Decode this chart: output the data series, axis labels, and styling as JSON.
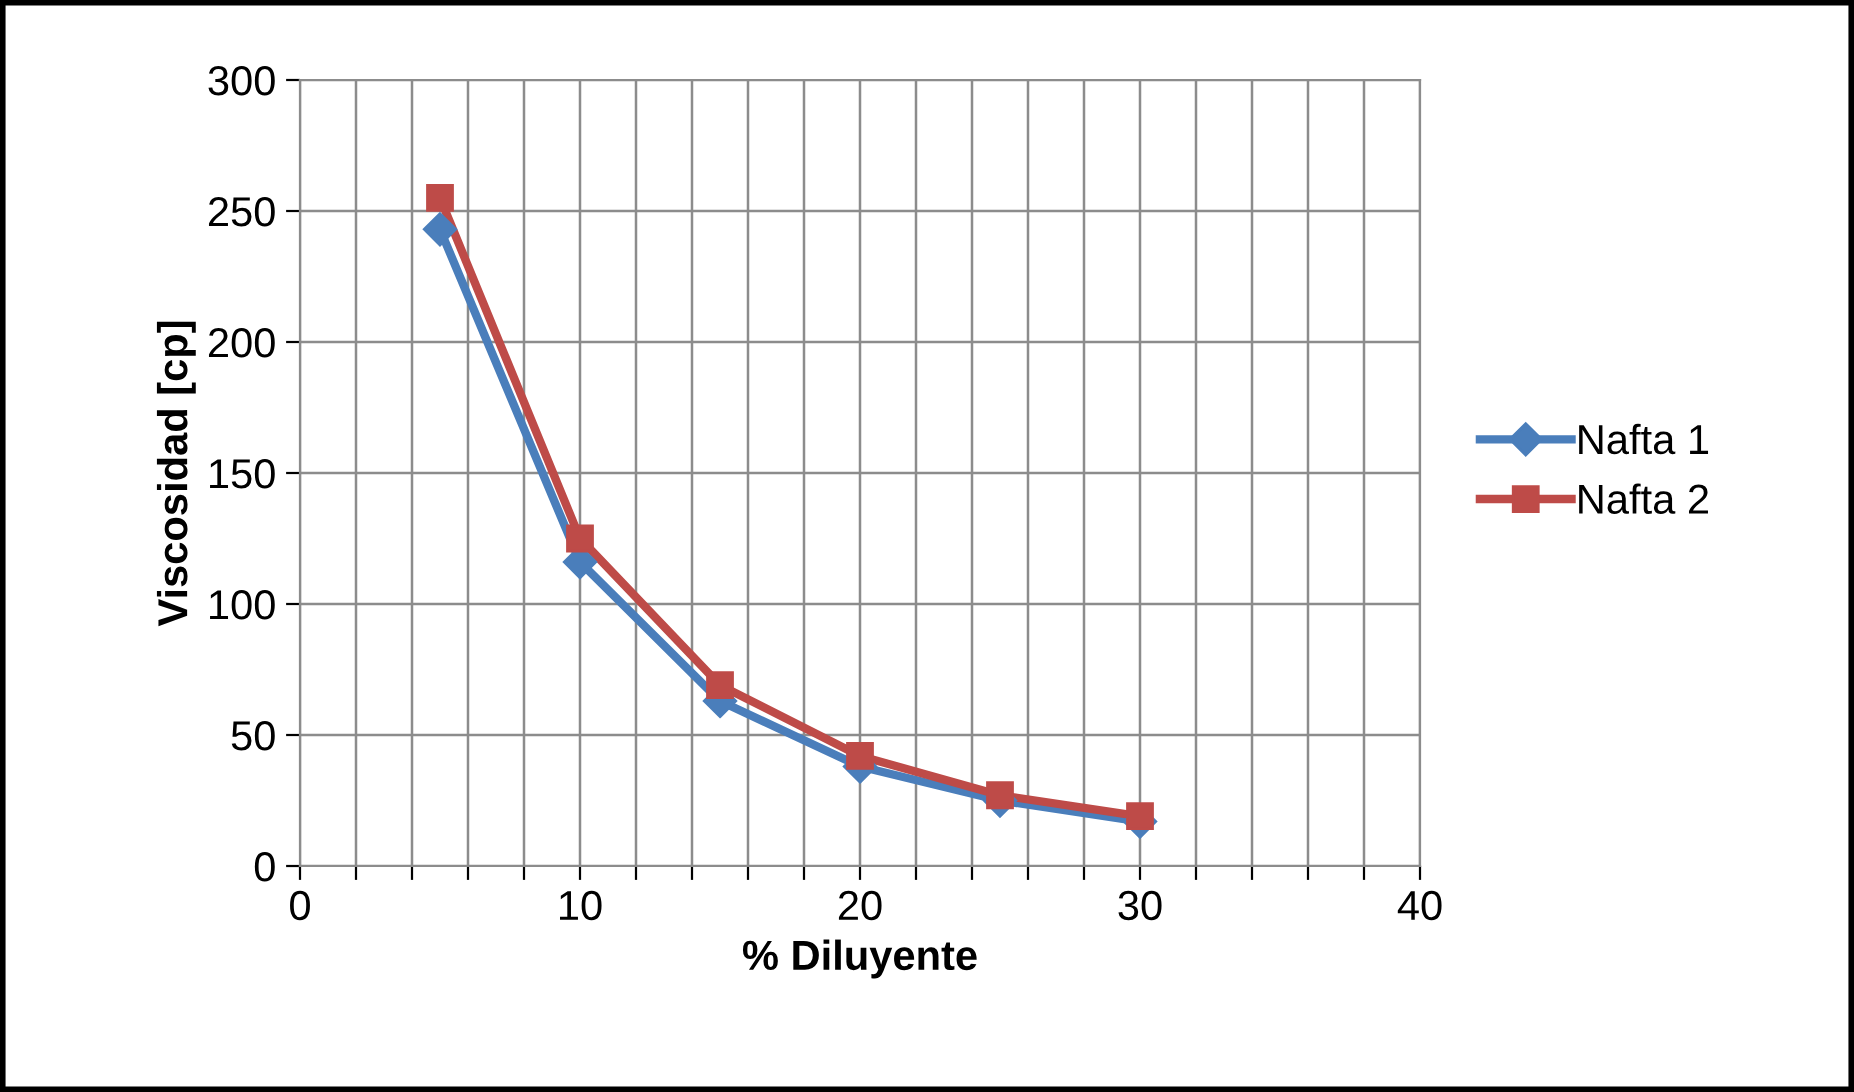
{
  "chart_data": {
    "type": "line",
    "xlabel": "% Diluyente",
    "ylabel": "Viscosidad [cp]",
    "x": [
      5,
      10,
      15,
      20,
      25,
      30
    ],
    "series": [
      {
        "name": "Nafta 1",
        "color": "#4a7ebb",
        "marker": "diamond",
        "values": [
          243,
          116,
          63,
          38,
          25,
          17
        ]
      },
      {
        "name": "Nafta 2",
        "color": "#be4b48",
        "marker": "square",
        "values": [
          255,
          125,
          69,
          42,
          27,
          19
        ]
      }
    ],
    "xlim": [
      0,
      40
    ],
    "ylim": [
      0,
      300
    ],
    "xticks": [
      0,
      {
        "value": 2,
        "label": null
      },
      {
        "value": 4,
        "label": null
      },
      {
        "value": 6,
        "label": null
      },
      {
        "value": 8,
        "label": null
      },
      10,
      {
        "value": 12,
        "label": null
      },
      {
        "value": 14,
        "label": null
      },
      {
        "value": 16,
        "label": null
      },
      {
        "value": 18,
        "label": null
      },
      20,
      {
        "value": 22,
        "label": null
      },
      {
        "value": 24,
        "label": null
      },
      {
        "value": 26,
        "label": null
      },
      {
        "value": 28,
        "label": null
      },
      30,
      {
        "value": 32,
        "label": null
      },
      {
        "value": 34,
        "label": null
      },
      {
        "value": 36,
        "label": null
      },
      {
        "value": 38,
        "label": null
      },
      40
    ],
    "yticks": [
      0,
      50,
      100,
      150,
      200,
      250,
      300
    ],
    "grid": true,
    "legend": "right",
    "line_style": "solid"
  }
}
